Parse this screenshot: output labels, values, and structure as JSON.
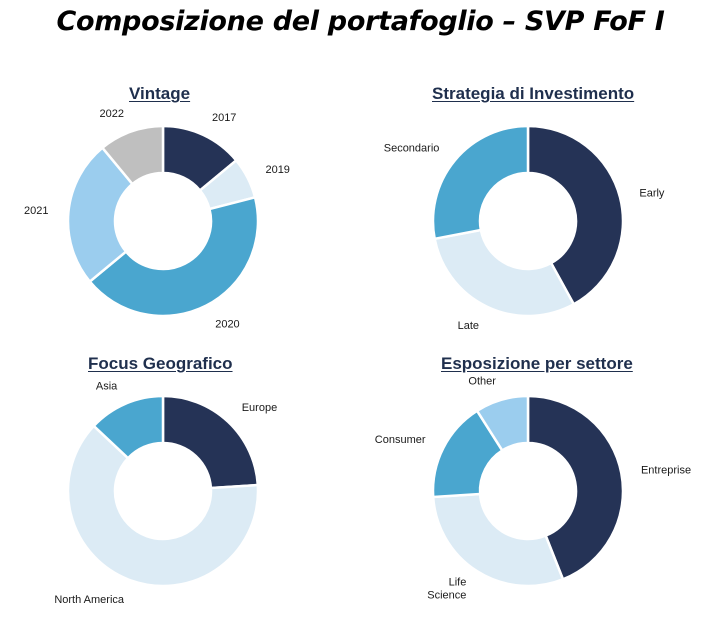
{
  "page_title": "Composizione del portafoglio – SVP FoF I",
  "chart_data": [
    {
      "type": "pie",
      "donut": true,
      "title": "Vintage",
      "slices": [
        {
          "label": "2017",
          "value": 14,
          "color": "#253356"
        },
        {
          "label": "2019",
          "value": 7,
          "color": "#dcebf5"
        },
        {
          "label": "2020",
          "value": 43,
          "color": "#4aa6cf"
        },
        {
          "label": "2021",
          "value": 25,
          "color": "#9bcdee"
        },
        {
          "label": "2022",
          "value": 11,
          "color": "#bfbfbf"
        }
      ]
    },
    {
      "type": "pie",
      "donut": true,
      "title": "Strategia di Investimento",
      "slices": [
        {
          "label": "Early",
          "value": 42,
          "color": "#253356"
        },
        {
          "label": "Late",
          "value": 30,
          "color": "#dcebf5"
        },
        {
          "label": "Secondario",
          "value": 28,
          "color": "#4aa6cf"
        }
      ]
    },
    {
      "type": "pie",
      "donut": true,
      "title": "Focus Geografico",
      "slices": [
        {
          "label": "Europe",
          "value": 24,
          "color": "#253356"
        },
        {
          "label": "North America",
          "value": 63,
          "color": "#dcebf5"
        },
        {
          "label": "Asia",
          "value": 13,
          "color": "#4aa6cf"
        }
      ]
    },
    {
      "type": "pie",
      "donut": true,
      "title": "Esposizione per settore",
      "slices": [
        {
          "label": "Entreprise",
          "value": 44,
          "color": "#253356"
        },
        {
          "label": "Life Science",
          "value": 30,
          "color": "#dcebf5"
        },
        {
          "label": "Consumer",
          "value": 17,
          "color": "#4aa6cf"
        },
        {
          "label": "Other",
          "value": 9,
          "color": "#9bcdee"
        }
      ]
    }
  ]
}
